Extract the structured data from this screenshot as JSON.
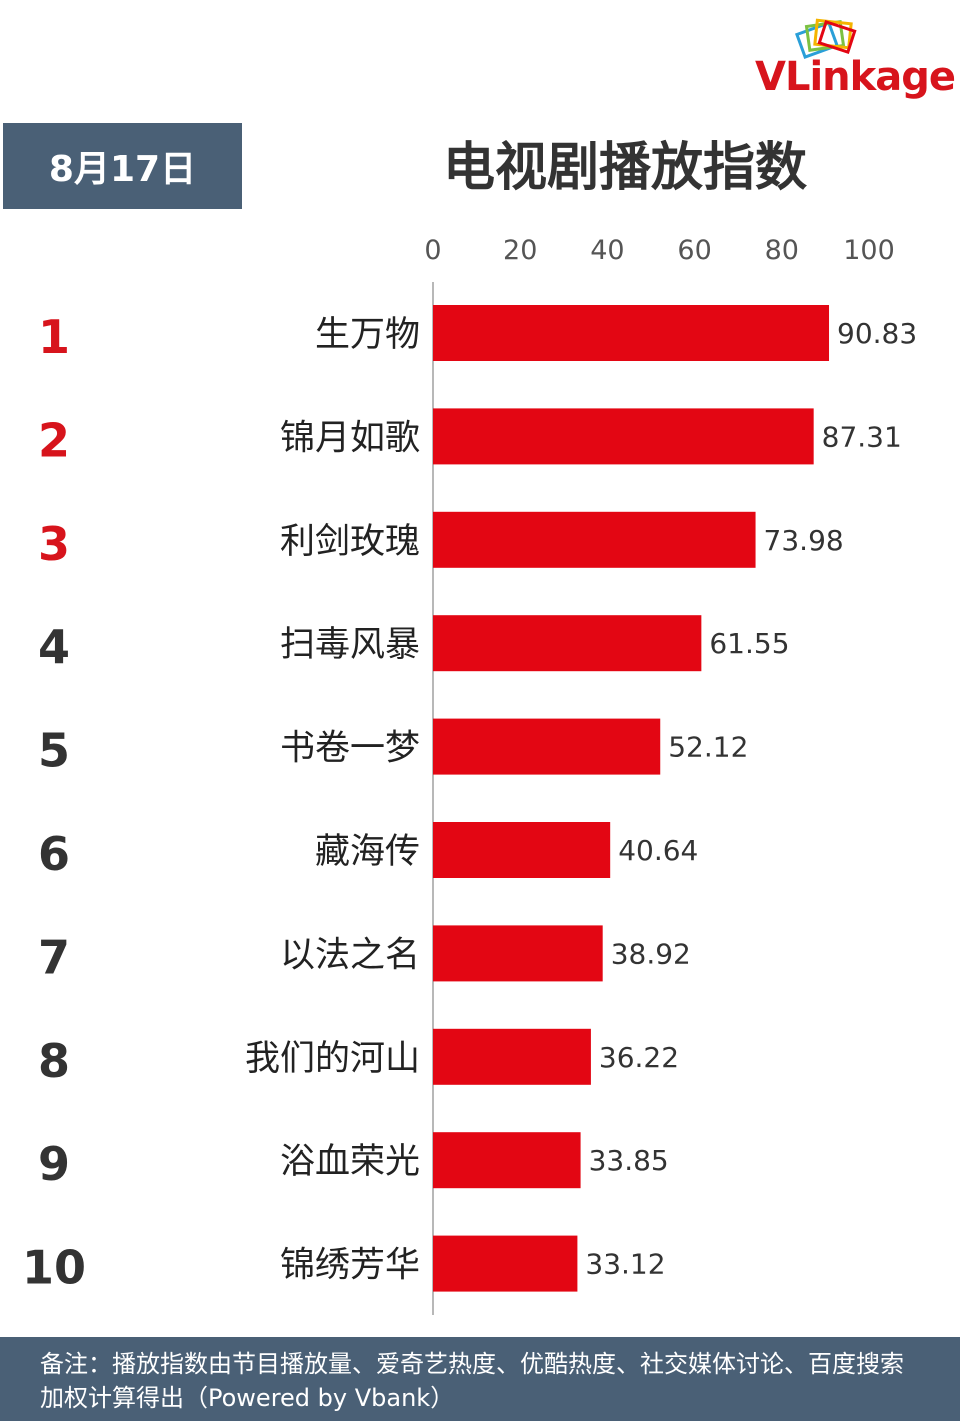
{
  "date": "8月17日",
  "title": "电视剧播放指数",
  "logo": {
    "text": "VLinkage"
  },
  "footer": {
    "note": "备注：播放指数由节目播放量、爱奇艺热度、优酷热度、社交媒体讨论、百度搜索加权计算得出（Powered by Vbank）"
  },
  "colors": {
    "bar": "#e30613",
    "top_rank": "#d7141c",
    "rank": "#333333",
    "badge": "#4a6076"
  },
  "chart_data": {
    "type": "bar",
    "orientation": "horizontal",
    "ranks": [
      "1",
      "2",
      "3",
      "4",
      "5",
      "6",
      "7",
      "8",
      "9",
      "10"
    ],
    "categories": [
      "生万物",
      "锦月如歌",
      "利剑玫瑰",
      "扫毒风暴",
      "书卷一梦",
      "藏海传",
      "以法之名",
      "我们的河山",
      "浴血荣光",
      "锦绣芳华"
    ],
    "values": [
      90.83,
      87.31,
      73.98,
      61.55,
      52.12,
      40.64,
      38.92,
      36.22,
      33.85,
      33.12
    ],
    "value_labels": [
      "90.83",
      "87.31",
      "73.98",
      "61.55",
      "52.12",
      "40.64",
      "38.92",
      "36.22",
      "33.85",
      "33.12"
    ],
    "xticks": [
      "0",
      "20",
      "40",
      "60",
      "80",
      "100"
    ],
    "xlim": [
      0,
      100
    ],
    "axis_position": "top",
    "grid": false
  }
}
